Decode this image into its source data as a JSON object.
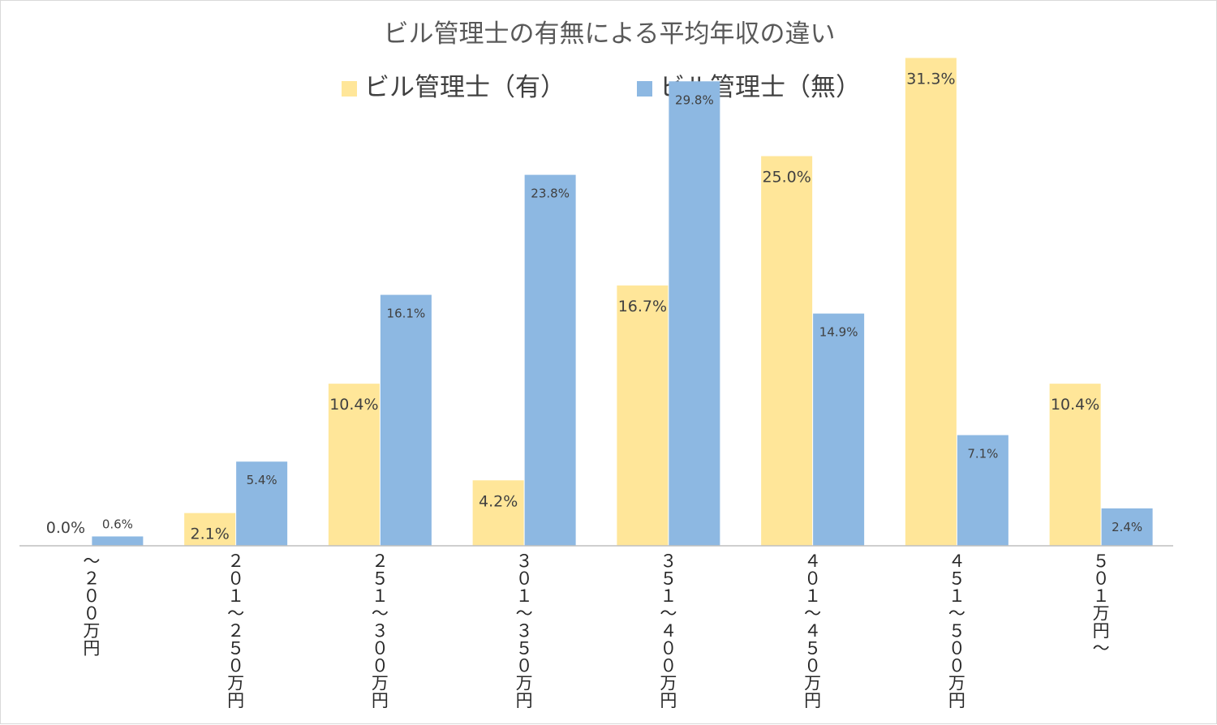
{
  "chart_data": {
    "type": "bar",
    "title": "ビル管理士の有無による平均年収の違い",
    "legend_position": "top",
    "grid": false,
    "categories": [
      "～２００万円",
      "２０１～２５０万円",
      "２５１～３００万円",
      "３０１～３５０万円",
      "３５１～４００万円",
      "４０１～４５０万円",
      "４５１～５００万円",
      "５０１万円～"
    ],
    "series": [
      {
        "name": "ビル管理士（有）",
        "color": "#ffe699",
        "values": [
          0.0,
          2.1,
          10.4,
          4.2,
          16.7,
          25.0,
          31.3,
          10.4
        ],
        "labels": [
          "0.0%",
          "2.1%",
          "10.4%",
          "4.2%",
          "16.7%",
          "25.0%",
          "31.3%",
          "10.4%"
        ]
      },
      {
        "name": "ビル管理士（無）",
        "color": "#8db8e2",
        "values": [
          0.6,
          5.4,
          16.1,
          23.8,
          29.8,
          14.9,
          7.1,
          2.4
        ],
        "labels": [
          "0.6%",
          "5.4%",
          "16.1%",
          "23.8%",
          "29.8%",
          "14.9%",
          "7.1%",
          "2.4%"
        ]
      }
    ],
    "ylim": [
      0,
      32
    ],
    "xlabel": "",
    "ylabel": ""
  }
}
